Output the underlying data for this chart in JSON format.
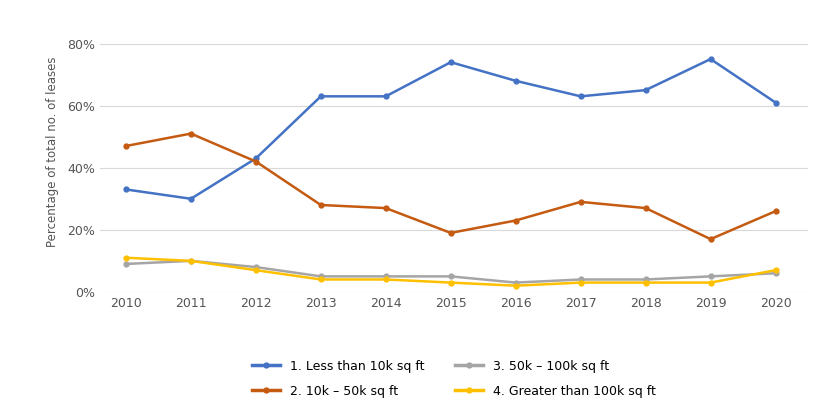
{
  "years": [
    2010,
    2011,
    2012,
    2013,
    2014,
    2015,
    2016,
    2017,
    2018,
    2019,
    2020
  ],
  "series": {
    "less_than_10k": [
      33,
      30,
      43,
      63,
      63,
      74,
      68,
      63,
      65,
      75,
      61
    ],
    "10k_to_50k": [
      47,
      51,
      42,
      28,
      27,
      19,
      23,
      29,
      27,
      17,
      26
    ],
    "50k_to_100k": [
      9,
      10,
      8,
      5,
      5,
      5,
      3,
      4,
      4,
      5,
      6
    ],
    "greater_than_100k": [
      11,
      10,
      7,
      4,
      4,
      3,
      2,
      3,
      3,
      3,
      7
    ]
  },
  "colors": {
    "less_than_10k": "#4472C4",
    "10k_to_50k": "#C55A11",
    "50k_to_100k": "#A5A5A5",
    "greater_than_100k": "#FFC000"
  },
  "labels": {
    "less_than_10k": "1. Less than 10k sq ft",
    "10k_to_50k": "2. 10k – 50k sq ft",
    "50k_to_100k": "3. 50k – 100k sq ft",
    "greater_than_100k": "4. Greater than 100k sq ft"
  },
  "series_order": [
    "less_than_10k",
    "10k_to_50k",
    "50k_to_100k",
    "greater_than_100k"
  ],
  "ylabel": "Percentage of total no. of leases",
  "ylim": [
    0,
    90
  ],
  "yticks": [
    0,
    20,
    40,
    60,
    80
  ],
  "ytick_labels": [
    "0%",
    "20%",
    "40%",
    "60%",
    "80%"
  ],
  "background_color": "#FFFFFF",
  "grid_color": "#D9D9D9",
  "line_width": 1.8,
  "marker": "o",
  "marker_size": 3.5,
  "figsize": [
    8.33,
    4.17
  ],
  "dpi": 100
}
